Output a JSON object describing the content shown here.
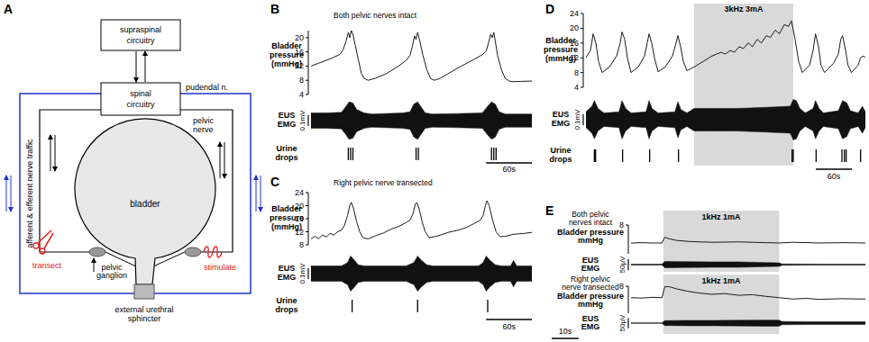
{
  "diagram": {
    "panel": "A",
    "labels": {
      "supraspinal": [
        "supraspinal",
        "circuitry"
      ],
      "spinal": [
        "spinal",
        "circuitry"
      ],
      "pudendal": "pudendal n.",
      "pelvic_nerve": [
        "pelvic",
        "nerve"
      ],
      "nerve_traffic": "afferent & efferent nerve traffic",
      "bladder": "bladder",
      "transect": "transect",
      "stimulate": "stimulate",
      "ganglion": [
        "pelvic",
        "ganglion"
      ],
      "sphincter": [
        "external urethral",
        "sphincter"
      ]
    }
  },
  "chart_data": [
    {
      "type": "line",
      "panel": "B",
      "title": [
        "Both pelvic nerves intact"
      ],
      "xlim": [
        0,
        290
      ],
      "tick_labels": "y",
      "pressure": {
        "label": [
          "Bladder",
          "pressure",
          "(mmHg)"
        ],
        "ylim": [
          4,
          22
        ],
        "yticks": [
          4,
          8,
          12,
          16,
          20
        ],
        "x": [
          0,
          10,
          20,
          30,
          38,
          42,
          46,
          49,
          51,
          53,
          55,
          58,
          62,
          66,
          70,
          75,
          85,
          100,
          115,
          125,
          130,
          133,
          136,
          138,
          140,
          143,
          147,
          152,
          157,
          162,
          170,
          185,
          200,
          215,
          225,
          230,
          233,
          236,
          238,
          240,
          242,
          245,
          250,
          255,
          260,
          265,
          275,
          290
        ],
        "values": [
          12,
          12.8,
          13.6,
          14.5,
          15.3,
          16.5,
          19,
          21.5,
          20,
          22,
          21,
          18,
          14,
          10,
          8.5,
          8,
          8.6,
          10,
          12,
          13.6,
          15,
          17.5,
          20.5,
          19.5,
          21.5,
          19,
          15,
          11,
          8.5,
          8,
          8.6,
          10.5,
          12.3,
          14,
          15.2,
          16.2,
          18.5,
          21,
          20,
          21.5,
          19,
          15,
          11,
          8.5,
          7.8,
          7.6,
          7.7,
          7.8
        ]
      },
      "emg": {
        "label": [
          "EUS",
          "EMG"
        ],
        "ylim": [
          -0.18,
          0.18
        ],
        "scale_bar": {
          "value": 0.1,
          "label": "0.1mV"
        },
        "x": [
          0,
          20,
          40,
          45,
          50,
          55,
          60,
          70,
          80,
          120,
          130,
          135,
          140,
          145,
          150,
          160,
          200,
          225,
          232,
          237,
          242,
          247,
          255,
          270,
          290
        ],
        "values": [
          0.07,
          0.07,
          0.075,
          0.12,
          0.17,
          0.16,
          0.1,
          0.07,
          0.06,
          0.07,
          0.08,
          0.15,
          0.17,
          0.12,
          0.07,
          0.06,
          0.065,
          0.07,
          0.13,
          0.17,
          0.15,
          0.08,
          0.06,
          0.06,
          0.06
        ]
      },
      "urine_drops": {
        "label": [
          "Urine",
          "drops"
        ],
        "x": [
          49,
          52,
          55,
          138,
          141,
          237,
          240,
          243
        ]
      },
      "time_scale_bar": {
        "value": 60,
        "label": "60s"
      }
    },
    {
      "type": "line",
      "panel": "C",
      "title": [
        "Right pelvic nerve transected"
      ],
      "xlim": [
        0,
        290
      ],
      "tick_labels": "y",
      "pressure": {
        "label": [
          "Bladder",
          "pressure",
          "(mmHg)"
        ],
        "ylim": [
          8,
          24
        ],
        "yticks": [
          8,
          12,
          16,
          20,
          24
        ],
        "x": [
          0,
          5,
          10,
          15,
          20,
          25,
          30,
          35,
          40,
          44,
          48,
          51,
          53,
          56,
          60,
          64,
          68,
          75,
          85,
          95,
          105,
          115,
          125,
          130,
          134,
          137,
          139,
          142,
          146,
          150,
          155,
          165,
          180,
          195,
          205,
          215,
          222,
          226,
          229,
          231,
          234,
          238,
          243,
          248,
          255,
          265,
          280,
          290
        ],
        "values": [
          9.8,
          10.6,
          9.9,
          11,
          10.4,
          11.5,
          11,
          12,
          12.5,
          14,
          17,
          20,
          21,
          19,
          15,
          12,
          10.2,
          9.8,
          10.8,
          11.6,
          12.8,
          13.6,
          14.8,
          15.6,
          17.5,
          20.5,
          21,
          19,
          15,
          12,
          10.2,
          10.6,
          11.8,
          12.6,
          13.4,
          14.6,
          15.5,
          17,
          20,
          21.5,
          20,
          16,
          12,
          10.5,
          10.6,
          11.2,
          11.5,
          11.8
        ]
      },
      "emg": {
        "label": [
          "EUS",
          "EMG"
        ],
        "ylim": [
          -0.18,
          0.18
        ],
        "scale_bar": {
          "value": 0.1,
          "label": "0.1mV"
        },
        "x": [
          0,
          40,
          48,
          52,
          56,
          62,
          70,
          125,
          135,
          140,
          145,
          152,
          160,
          220,
          226,
          230,
          235,
          242,
          250,
          262,
          266,
          270,
          290
        ],
        "values": [
          0.07,
          0.07,
          0.1,
          0.16,
          0.13,
          0.08,
          0.07,
          0.07,
          0.1,
          0.16,
          0.12,
          0.08,
          0.07,
          0.07,
          0.1,
          0.16,
          0.12,
          0.08,
          0.07,
          0.07,
          0.12,
          0.07,
          0.07
        ]
      },
      "urine_drops": {
        "label": [
          "Urine",
          "drops"
        ],
        "x": [
          54,
          140,
          232
        ]
      },
      "time_scale_bar": {
        "value": 60,
        "label": "60s"
      }
    },
    {
      "type": "line",
      "panel": "D",
      "xlim": [
        0,
        465
      ],
      "tick_labels": "y",
      "stimulation": {
        "label": "3kHz 3mA",
        "start": 180,
        "end": 345
      },
      "pressure": {
        "label": [
          "Bladder",
          "pressure",
          "(mmHg)"
        ],
        "ylim": [
          4,
          24
        ],
        "yticks": [
          4,
          8,
          12,
          16,
          20,
          24
        ],
        "x": [
          0,
          7.5,
          12,
          16.5,
          21,
          27,
          39,
          51,
          57,
          60,
          64.5,
          69,
          75,
          87,
          97.5,
          102,
          105,
          109.5,
          114,
          120,
          132,
          144,
          150,
          153,
          157.5,
          162,
          168,
          180,
          195,
          210,
          225,
          232,
          240,
          247,
          255,
          262,
          270,
          277,
          285,
          292,
          300,
          307,
          315,
          322,
          330,
          337,
          342,
          348,
          354,
          360,
          372,
          378,
          382,
          387,
          391,
          397,
          412,
          420,
          424,
          427,
          432,
          436,
          442,
          453,
          457,
          462,
          465
        ],
        "values": [
          12,
          14,
          18.5,
          16,
          11,
          8,
          9.5,
          12.5,
          16,
          19,
          17,
          12,
          8,
          9.5,
          12.5,
          16,
          18.5,
          16,
          12,
          8.2,
          9.5,
          12.5,
          16,
          18,
          15,
          11,
          8.5,
          9.5,
          11,
          12.5,
          13.5,
          13,
          14,
          13.5,
          15,
          14.5,
          16,
          15,
          17,
          16,
          18,
          17.5,
          19.5,
          18.5,
          21,
          20.5,
          22,
          17,
          11,
          8,
          10,
          14,
          18.5,
          15,
          10,
          8,
          10.5,
          13,
          17,
          18,
          14,
          10,
          8,
          10,
          12,
          12.5,
          12
        ]
      },
      "emg": {
        "label": [
          "EUS",
          "EMG"
        ],
        "ylim": [
          -0.2,
          0.2
        ],
        "scale_bar": {
          "value": 0.1,
          "label": "0.1mV"
        },
        "x": [
          0,
          10,
          14,
          20,
          30,
          55,
          60,
          66,
          75,
          100,
          105,
          110,
          120,
          148,
          153,
          158,
          168,
          180,
          200,
          250,
          300,
          340,
          345,
          350,
          356,
          365,
          378,
          382,
          388,
          395,
          420,
          427,
          434,
          440,
          453,
          460,
          465
        ],
        "values": [
          0.07,
          0.12,
          0.17,
          0.1,
          0.06,
          0.07,
          0.17,
          0.1,
          0.06,
          0.07,
          0.17,
          0.1,
          0.06,
          0.07,
          0.16,
          0.09,
          0.06,
          0.1,
          0.1,
          0.1,
          0.11,
          0.12,
          0.18,
          0.17,
          0.1,
          0.06,
          0.1,
          0.17,
          0.1,
          0.06,
          0.08,
          0.17,
          0.15,
          0.08,
          0.06,
          0.12,
          0.07
        ]
      },
      "urine_drops": {
        "label": [
          "Urine",
          "drops"
        ],
        "x": [
          14,
          16,
          61,
          106,
          154,
          343,
          345,
          383,
          426,
          430,
          433,
          457
        ]
      },
      "time_scale_bar": {
        "value": 60,
        "label": "60s"
      }
    },
    {
      "type": "line",
      "panel": "E",
      "title": [
        "Both pelvic",
        "nerves intact"
      ],
      "xlim": [
        0,
        87
      ],
      "tick_labels": "y",
      "stimulation": {
        "label": "1kHz 1mA",
        "start": 12,
        "end": 55
      },
      "pressure": {
        "label": [
          "Bladder pressure",
          "mmHg"
        ],
        "ylim": [
          0,
          8
        ],
        "yticks": [
          8
        ],
        "x": [
          0,
          4,
          8,
          11.5,
          12.5,
          14,
          17,
          22,
          30,
          40,
          50,
          55,
          60,
          70,
          80,
          87
        ],
        "values": [
          3,
          3.1,
          3,
          3,
          4.6,
          4.2,
          3.7,
          3.4,
          3.2,
          3.3,
          3.1,
          3,
          3.2,
          3,
          3.1,
          3
        ]
      },
      "emg": {
        "label": [
          "EUS",
          "EMG"
        ],
        "ylim": [
          -40,
          40
        ],
        "scale_bar": {
          "value": 50,
          "label": "50μV"
        },
        "x": [
          0,
          11.5,
          12.5,
          20,
          30,
          40,
          50,
          55,
          56,
          70,
          87
        ],
        "values": [
          2,
          2,
          14,
          13,
          12,
          12,
          9,
          8,
          3,
          2,
          2
        ]
      }
    },
    {
      "type": "line",
      "title": [
        "Right pelvic",
        "nerve transected"
      ],
      "xlim": [
        0,
        87
      ],
      "tick_labels": "y",
      "stimulation": {
        "label": "1kHz 1mA",
        "start": 12,
        "end": 55
      },
      "pressure": {
        "label": [
          "Bladder pressure",
          "mmHg"
        ],
        "ylim": [
          0,
          8
        ],
        "yticks": [
          8
        ],
        "x": [
          0,
          4,
          8,
          11.5,
          12.5,
          14,
          17,
          21,
          25,
          30,
          35,
          40,
          45,
          50,
          55,
          60,
          65,
          70,
          78,
          87
        ],
        "values": [
          4.6,
          4.5,
          4.7,
          4.6,
          7.8,
          7.9,
          7.2,
          6.5,
          6,
          5.6,
          5.8,
          5.3,
          5.5,
          5,
          4.6,
          4.2,
          4.4,
          4.1,
          4.3,
          4.2
        ]
      },
      "emg": {
        "label": [
          "EUS",
          "EMG"
        ],
        "ylim": [
          -40,
          40
        ],
        "scale_bar": {
          "value": 50,
          "label": "50μV"
        },
        "x": [
          0,
          11.5,
          12.5,
          20,
          30,
          40,
          50,
          55,
          56,
          65,
          75,
          87
        ],
        "values": [
          1.5,
          1.5,
          12,
          13,
          13,
          14,
          15,
          15,
          8,
          7,
          7,
          7
        ]
      },
      "time_scale_bar": {
        "value": 10,
        "label": "10s"
      }
    }
  ]
}
